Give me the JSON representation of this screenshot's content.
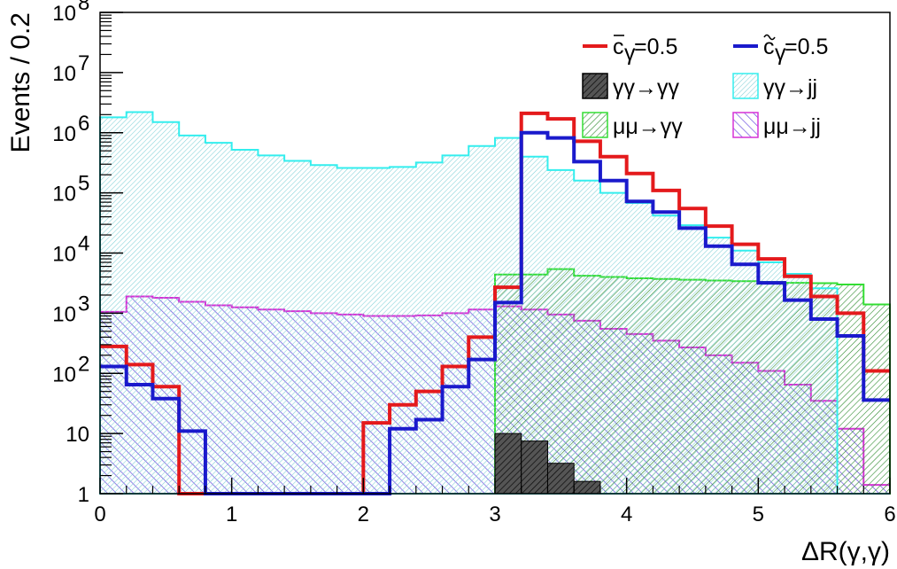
{
  "chart_data": {
    "type": "histogram",
    "xlabel": "ΔR(γ,γ)",
    "ylabel": "Events / 0.2",
    "xlim": [
      0,
      6
    ],
    "ylim": [
      1,
      100000000
    ],
    "y_scale": "log",
    "grid": false,
    "legend_placement": "top-right",
    "bin_edges": [
      0,
      0.2,
      0.4,
      0.6,
      0.8,
      1.0,
      1.2,
      1.4,
      1.6,
      1.8,
      2.0,
      2.2,
      2.4,
      2.6,
      2.8,
      3.0,
      3.2,
      3.4,
      3.6,
      3.8,
      4.0,
      4.2,
      4.4,
      4.6,
      4.8,
      5.0,
      5.2,
      5.4,
      5.6,
      5.8,
      6.0
    ],
    "x_ticks": [
      {
        "value": 0,
        "label": "0"
      },
      {
        "value": 1,
        "label": "1"
      },
      {
        "value": 2,
        "label": "2"
      },
      {
        "value": 3,
        "label": "3"
      },
      {
        "value": 4,
        "label": "4"
      },
      {
        "value": 5,
        "label": "5"
      },
      {
        "value": 6,
        "label": "6"
      }
    ],
    "y_ticks": [
      {
        "value": 1,
        "base": "1",
        "exp": ""
      },
      {
        "value": 10,
        "base": "10",
        "exp": ""
      },
      {
        "value": 100,
        "base": "10",
        "exp": "2"
      },
      {
        "value": 1000,
        "base": "10",
        "exp": "3"
      },
      {
        "value": 10000,
        "base": "10",
        "exp": "4"
      },
      {
        "value": 100000,
        "base": "10",
        "exp": "5"
      },
      {
        "value": 1000000,
        "base": "10",
        "exp": "6"
      },
      {
        "value": 10000000,
        "base": "10",
        "exp": "7"
      },
      {
        "value": 100000000,
        "base": "10",
        "exp": "8"
      }
    ],
    "series": [
      {
        "name": "μμ→jj",
        "legend_label": {
          "base": "μμ→jj",
          "sub": "",
          "accent": ""
        },
        "style": "hatch",
        "color": "#d632d6",
        "values": [
          1050,
          1900,
          1800,
          1550,
          1350,
          1250,
          1150,
          1080,
          1000,
          950,
          900,
          900,
          920,
          1000,
          1150,
          1300,
          1150,
          950,
          750,
          550,
          450,
          350,
          270,
          200,
          150,
          110,
          65,
          35,
          12,
          1.4
        ]
      },
      {
        "name": "μμ→γγ",
        "legend_label": {
          "base": "μμ→γγ",
          "sub": "",
          "accent": ""
        },
        "style": "hatch",
        "color": "#33dd33",
        "values": [
          1,
          1,
          1,
          1,
          1,
          1,
          1,
          1,
          1,
          1,
          1,
          1,
          1,
          1,
          1,
          4400,
          4400,
          5400,
          4200,
          4000,
          3800,
          3700,
          3600,
          3500,
          3400,
          3300,
          3200,
          3150,
          3000,
          1400
        ]
      },
      {
        "name": "γγ→jj",
        "legend_label": {
          "base": "γγ→jj",
          "sub": "",
          "accent": ""
        },
        "style": "hatch",
        "color": "#33eeee",
        "values": [
          1800000,
          2200000,
          1500000,
          900000,
          680000,
          520000,
          420000,
          340000,
          290000,
          260000,
          260000,
          270000,
          320000,
          420000,
          600000,
          820000,
          400000,
          240000,
          160000,
          100000,
          68000,
          42000,
          29000,
          18000,
          11000,
          7000,
          4500,
          2600,
          1,
          1
        ]
      },
      {
        "name": "γγ→γγ",
        "legend_label": {
          "base": "γγ→γγ",
          "sub": "",
          "accent": ""
        },
        "style": "solid-dark",
        "color": "#111111",
        "values": [
          0,
          0,
          0,
          0,
          0,
          0,
          0,
          0,
          0,
          0,
          0,
          0,
          0,
          0,
          0,
          10,
          7.5,
          3.2,
          1.6,
          0,
          0,
          0,
          0,
          0,
          0,
          0,
          0,
          0,
          0,
          0
        ]
      },
      {
        "name": "c̄γ=0.5",
        "legend_label": {
          "base": "c",
          "sub": "γ",
          "tail": "=0.5",
          "accent": "bar"
        },
        "style": "line",
        "color": "#e41a1c",
        "values": [
          280,
          140,
          60,
          1,
          1,
          1,
          1,
          1,
          1,
          1,
          15,
          30,
          50,
          130,
          400,
          2700,
          2100000,
          1700000,
          720000,
          400000,
          210000,
          110000,
          55000,
          28000,
          14000,
          8000,
          4100,
          1900,
          1000,
          110
        ]
      },
      {
        "name": "c̃γ=0.5",
        "legend_label": {
          "base": "c",
          "sub": "γ",
          "tail": "=0.5",
          "accent": "tilde"
        },
        "style": "line",
        "color": "#1a1acc",
        "values": [
          130,
          65,
          38,
          11,
          1,
          1,
          1,
          1,
          1,
          1,
          1,
          12,
          17,
          60,
          170,
          1500,
          1000000,
          820000,
          330000,
          160000,
          72000,
          48000,
          26000,
          13000,
          6500,
          3200,
          1650,
          800,
          420,
          36
        ]
      }
    ],
    "legend": {
      "items": [
        {
          "series": "c̄γ=0.5",
          "symbol": "line"
        },
        {
          "series": "c̃γ=0.5",
          "symbol": "line"
        },
        {
          "series": "γγ→γγ",
          "symbol": "box"
        },
        {
          "series": "γγ→jj",
          "symbol": "box"
        },
        {
          "series": "μμ→γγ",
          "symbol": "box"
        },
        {
          "series": "μμ→jj",
          "symbol": "box"
        }
      ]
    }
  }
}
